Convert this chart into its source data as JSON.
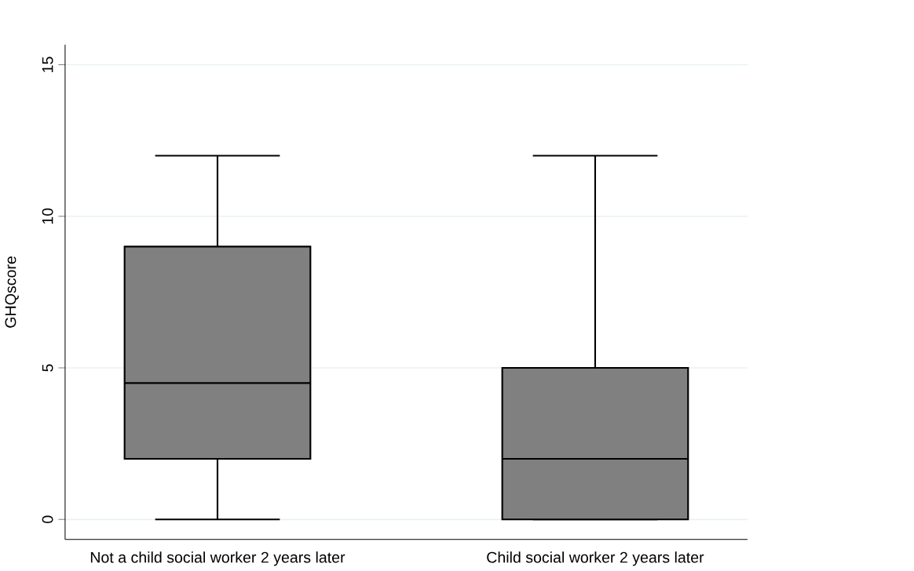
{
  "chart_data": {
    "type": "box",
    "ylabel": "GHQscore",
    "categories": [
      "Not a child social worker 2 years later",
      "Child social worker 2 years later"
    ],
    "series": [
      {
        "color": "#808080",
        "boxes": [
          {
            "low": 0,
            "q1": 2,
            "median": 4.5,
            "q3": 9,
            "high": 12
          },
          {
            "low": 0,
            "q1": 0,
            "median": 2,
            "q3": 5,
            "high": 12
          }
        ]
      }
    ],
    "ylim": [
      -0.66,
      15.66
    ],
    "yticks": [
      0,
      5,
      10,
      15
    ],
    "grid": "y"
  }
}
